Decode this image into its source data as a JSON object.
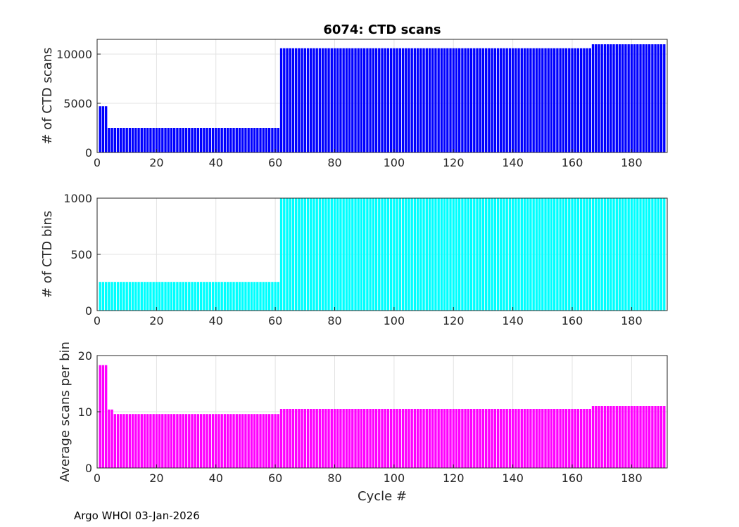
{
  "title": "6074: CTD scans",
  "footer": "Argo WHOI 03-Jan-2026",
  "chart_data": [
    {
      "type": "bar",
      "ylabel": "# of CTD scans",
      "xlabel": "",
      "xlim": [
        0,
        192
      ],
      "ylim": [
        0,
        11500
      ],
      "xticks": [
        0,
        20,
        40,
        60,
        80,
        100,
        120,
        140,
        160,
        180
      ],
      "yticks": [
        0,
        5000,
        10000
      ],
      "grid": true,
      "color": "#0000ff",
      "segments": [
        {
          "from": 1,
          "to": 3,
          "value": 4700
        },
        {
          "from": 4,
          "to": 61,
          "value": 2500
        },
        {
          "from": 62,
          "to": 166,
          "value": 10600
        },
        {
          "from": 167,
          "to": 191,
          "value": 11000
        }
      ]
    },
    {
      "type": "bar",
      "ylabel": "# of CTD bins",
      "xlabel": "",
      "xlim": [
        0,
        192
      ],
      "ylim": [
        0,
        1000
      ],
      "xticks": [
        0,
        20,
        40,
        60,
        80,
        100,
        120,
        140,
        160,
        180
      ],
      "yticks": [
        0,
        500,
        1000
      ],
      "grid": true,
      "color": "#00ffff",
      "segments": [
        {
          "from": 1,
          "to": 61,
          "value": 255
        },
        {
          "from": 62,
          "to": 191,
          "value": 1000
        }
      ]
    },
    {
      "type": "bar",
      "ylabel": "Average scans per bin",
      "xlabel": "Cycle #",
      "xlim": [
        0,
        192
      ],
      "ylim": [
        0,
        20
      ],
      "xticks": [
        0,
        20,
        40,
        60,
        80,
        100,
        120,
        140,
        160,
        180
      ],
      "yticks": [
        0,
        10,
        20
      ],
      "grid": true,
      "color": "#ff00ff",
      "segments": [
        {
          "from": 1,
          "to": 3,
          "value": 18.3
        },
        {
          "from": 4,
          "to": 5,
          "value": 10.4
        },
        {
          "from": 6,
          "to": 61,
          "value": 9.6
        },
        {
          "from": 62,
          "to": 166,
          "value": 10.5
        },
        {
          "from": 167,
          "to": 191,
          "value": 11.0
        }
      ]
    }
  ]
}
